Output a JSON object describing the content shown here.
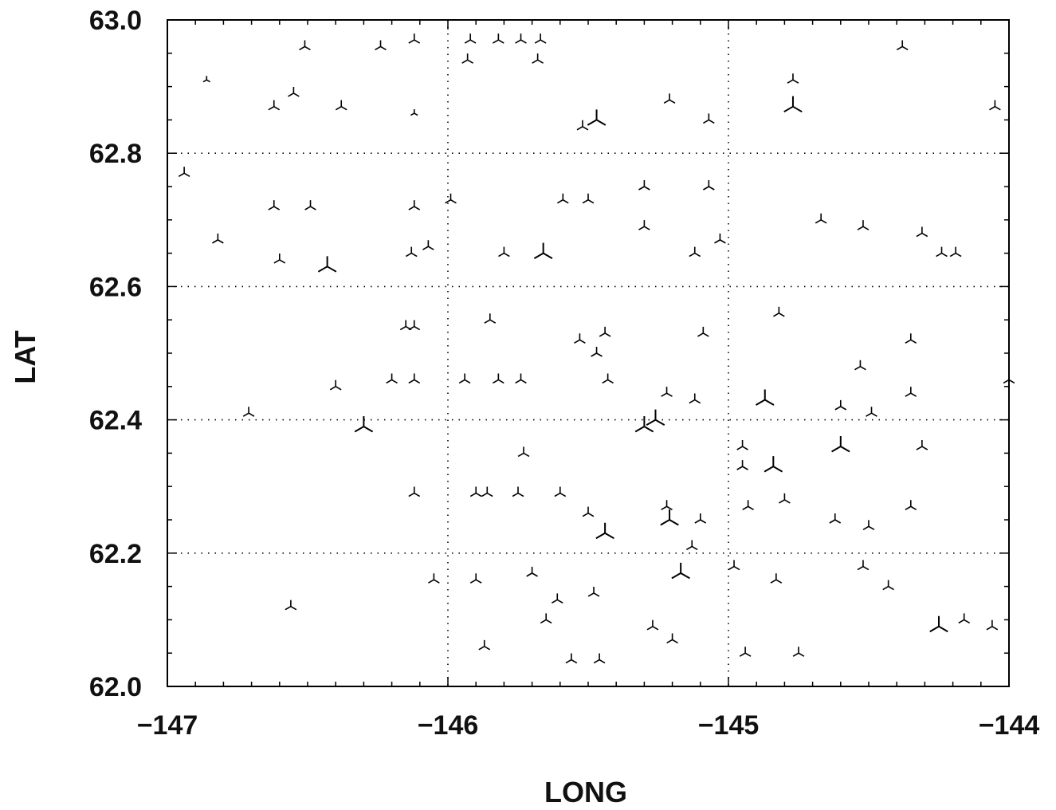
{
  "chart_data": {
    "type": "scatter",
    "title": "",
    "xlabel": "LONG",
    "ylabel": "LAT",
    "xlim": [
      -147,
      -144
    ],
    "ylim": [
      62.0,
      63.0
    ],
    "x_ticks": [
      -147,
      -146,
      -145,
      -144
    ],
    "x_tick_labels": [
      "−147",
      "−146",
      "−145",
      "−144"
    ],
    "y_ticks": [
      62.0,
      62.2,
      62.4,
      62.6,
      62.8,
      63.0
    ],
    "y_tick_labels": [
      "62.0",
      "62.2",
      "62.4",
      "62.6",
      "62.8",
      "63.0"
    ],
    "grid": "dotted lines at 62.2, 62.4, 62.6, 62.8 latitude and -146, -145 longitude",
    "marker": "three-armed tripod glyph, size scaled by magnitude",
    "series": [
      {
        "points": [
          [
            -146.86,
            62.91,
            1
          ],
          [
            -146.62,
            62.87,
            2
          ],
          [
            -146.38,
            62.87,
            2
          ],
          [
            -146.12,
            62.86,
            1
          ],
          [
            -145.92,
            62.97,
            2
          ],
          [
            -145.74,
            62.97,
            2
          ],
          [
            -145.52,
            62.84,
            2
          ],
          [
            -145.47,
            62.85,
            3
          ],
          [
            -145.21,
            62.88,
            2
          ],
          [
            -145.07,
            62.85,
            2
          ],
          [
            -144.77,
            62.87,
            3
          ],
          [
            -144.77,
            62.91,
            2
          ],
          [
            -144.38,
            62.96,
            2
          ],
          [
            -144.05,
            62.87,
            2
          ],
          [
            -146.94,
            62.77,
            2
          ],
          [
            -146.55,
            62.89,
            2
          ],
          [
            -146.51,
            62.96,
            2
          ],
          [
            -146.24,
            62.96,
            2
          ],
          [
            -146.12,
            62.97,
            2
          ],
          [
            -145.82,
            62.97,
            2
          ],
          [
            -145.67,
            62.97,
            2
          ],
          [
            -145.93,
            62.94,
            2
          ],
          [
            -145.68,
            62.94,
            2
          ],
          [
            -146.62,
            62.72,
            2
          ],
          [
            -146.49,
            62.72,
            2
          ],
          [
            -146.12,
            62.72,
            2
          ],
          [
            -145.99,
            62.73,
            2
          ],
          [
            -145.59,
            62.73,
            2
          ],
          [
            -145.5,
            62.73,
            2
          ],
          [
            -145.3,
            62.75,
            2
          ],
          [
            -145.3,
            62.69,
            2
          ],
          [
            -145.07,
            62.75,
            2
          ],
          [
            -144.67,
            62.7,
            2
          ],
          [
            -144.52,
            62.69,
            2
          ],
          [
            -144.31,
            62.68,
            2
          ],
          [
            -144.24,
            62.65,
            2
          ],
          [
            -144.19,
            62.65,
            2
          ],
          [
            -146.82,
            62.67,
            2
          ],
          [
            -146.6,
            62.64,
            2
          ],
          [
            -146.43,
            62.63,
            3
          ],
          [
            -146.13,
            62.65,
            2
          ],
          [
            -146.07,
            62.66,
            2
          ],
          [
            -145.8,
            62.65,
            2
          ],
          [
            -145.66,
            62.65,
            3
          ],
          [
            -145.12,
            62.65,
            2
          ],
          [
            -145.03,
            62.67,
            2
          ],
          [
            -146.15,
            62.54,
            2
          ],
          [
            -146.12,
            62.54,
            2
          ],
          [
            -145.85,
            62.55,
            2
          ],
          [
            -145.53,
            62.52,
            2
          ],
          [
            -145.47,
            62.5,
            2
          ],
          [
            -145.44,
            62.53,
            2
          ],
          [
            -145.09,
            62.53,
            2
          ],
          [
            -144.82,
            62.56,
            2
          ],
          [
            -144.53,
            62.48,
            2
          ],
          [
            -144.35,
            62.52,
            2
          ],
          [
            -144.0,
            62.46,
            2
          ],
          [
            -146.4,
            62.45,
            2
          ],
          [
            -146.2,
            62.46,
            2
          ],
          [
            -146.12,
            62.46,
            2
          ],
          [
            -145.94,
            62.46,
            2
          ],
          [
            -145.82,
            62.46,
            2
          ],
          [
            -145.74,
            62.46,
            2
          ],
          [
            -145.43,
            62.46,
            2
          ],
          [
            -145.22,
            62.44,
            2
          ],
          [
            -145.12,
            62.43,
            2
          ],
          [
            -144.87,
            62.43,
            3
          ],
          [
            -144.6,
            62.42,
            2
          ],
          [
            -144.49,
            62.41,
            2
          ],
          [
            -144.35,
            62.44,
            2
          ],
          [
            -146.71,
            62.41,
            2
          ],
          [
            -146.3,
            62.39,
            3
          ],
          [
            -145.3,
            62.39,
            3
          ],
          [
            -145.26,
            62.4,
            3
          ],
          [
            -145.73,
            62.35,
            2
          ],
          [
            -144.95,
            62.36,
            2
          ],
          [
            -144.6,
            62.36,
            3
          ],
          [
            -144.31,
            62.36,
            2
          ],
          [
            -144.95,
            62.33,
            2
          ],
          [
            -144.84,
            62.33,
            3
          ],
          [
            -146.12,
            62.29,
            2
          ],
          [
            -145.9,
            62.29,
            2
          ],
          [
            -145.86,
            62.29,
            2
          ],
          [
            -145.75,
            62.29,
            2
          ],
          [
            -145.6,
            62.29,
            2
          ],
          [
            -145.5,
            62.26,
            2
          ],
          [
            -145.22,
            62.27,
            2
          ],
          [
            -145.21,
            62.25,
            3
          ],
          [
            -145.1,
            62.25,
            2
          ],
          [
            -144.93,
            62.27,
            2
          ],
          [
            -144.8,
            62.28,
            2
          ],
          [
            -144.62,
            62.25,
            2
          ],
          [
            -144.5,
            62.24,
            2
          ],
          [
            -144.35,
            62.27,
            2
          ],
          [
            -145.44,
            62.23,
            3
          ],
          [
            -145.13,
            62.21,
            2
          ],
          [
            -144.98,
            62.18,
            2
          ],
          [
            -146.05,
            62.16,
            2
          ],
          [
            -145.9,
            62.16,
            2
          ],
          [
            -145.7,
            62.17,
            2
          ],
          [
            -145.61,
            62.13,
            2
          ],
          [
            -145.48,
            62.14,
            2
          ],
          [
            -145.17,
            62.17,
            3
          ],
          [
            -144.83,
            62.16,
            2
          ],
          [
            -144.52,
            62.18,
            2
          ],
          [
            -144.43,
            62.15,
            2
          ],
          [
            -144.25,
            62.09,
            3
          ],
          [
            -144.16,
            62.1,
            2
          ],
          [
            -144.06,
            62.09,
            2
          ],
          [
            -146.56,
            62.12,
            2
          ],
          [
            -145.87,
            62.06,
            2
          ],
          [
            -145.65,
            62.1,
            2
          ],
          [
            -145.56,
            62.04,
            2
          ],
          [
            -145.46,
            62.04,
            2
          ],
          [
            -145.27,
            62.09,
            2
          ],
          [
            -145.2,
            62.07,
            2
          ],
          [
            -144.94,
            62.05,
            2
          ],
          [
            -144.75,
            62.05,
            2
          ]
        ]
      }
    ]
  }
}
